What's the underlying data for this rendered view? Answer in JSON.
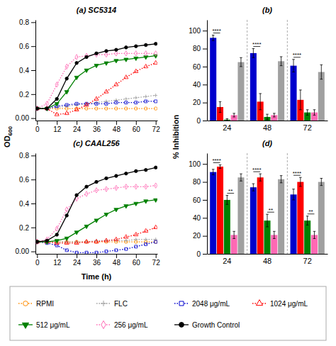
{
  "chart_data": [
    {
      "type": "line",
      "title": "(a) SC5314",
      "ylabel": "OD600",
      "legend": "bottom",
      "x": [
        0,
        6,
        12,
        18,
        24,
        30,
        36,
        42,
        48,
        54,
        60,
        66,
        72
      ],
      "xlim": [
        -1,
        73
      ],
      "xticks": [
        0,
        12,
        24,
        36,
        48,
        60,
        72
      ],
      "ylim": [
        -0.02,
        0.82
      ],
      "yticks": [
        {
          "value": 0,
          "label": "0.00"
        },
        0.2,
        0.4,
        0.6,
        0.8
      ],
      "series": [
        {
          "name": "RPMI",
          "color": "#FF8C00",
          "marker": "circle",
          "line_style": "dotted",
          "values": [
            0.08,
            0.08,
            0.08,
            0.08,
            0.08,
            0.08,
            0.08,
            0.08,
            0.08,
            0.08,
            0.08,
            0.08,
            0.08
          ]
        },
        {
          "name": "FLC",
          "color": "#A0A0A0",
          "marker": "plus",
          "line_style": "dotted",
          "values": [
            0.08,
            0.08,
            0.09,
            0.1,
            0.11,
            0.12,
            0.13,
            0.14,
            0.15,
            0.16,
            0.17,
            0.18,
            0.19
          ]
        },
        {
          "name": "2048 μg/mL",
          "color": "#0000CD",
          "marker": "square",
          "line_style": "dotted",
          "values": [
            0.08,
            0.08,
            0.1,
            0.11,
            0.12,
            0.12,
            0.12,
            0.12,
            0.13,
            0.13,
            0.13,
            0.14,
            0.14
          ]
        },
        {
          "name": "1024 μg/mL",
          "color": "#FF0000",
          "marker": "triangle-up",
          "line_style": "dotted",
          "values": [
            0.08,
            0.08,
            0.03,
            0.04,
            0.07,
            0.11,
            0.16,
            0.22,
            0.28,
            0.34,
            0.39,
            0.43,
            0.46
          ]
        },
        {
          "name": "512 μg/mL",
          "color": "#008000",
          "marker": "triangle-down",
          "line_style": "solid",
          "values": [
            0.08,
            0.08,
            0.12,
            0.22,
            0.34,
            0.4,
            0.44,
            0.46,
            0.48,
            0.49,
            0.5,
            0.51,
            0.52
          ]
        },
        {
          "name": "256 μg/mL",
          "color": "#FF69B4",
          "marker": "diamond",
          "line_style": "dotted",
          "values": [
            0.08,
            0.12,
            0.28,
            0.43,
            0.51,
            0.52,
            0.53,
            0.53,
            0.54,
            0.54,
            0.54,
            0.54,
            0.54
          ]
        },
        {
          "name": "Growth Control",
          "color": "#000000",
          "marker": "circle",
          "line_style": "solid",
          "values": [
            0.08,
            0.08,
            0.16,
            0.33,
            0.46,
            0.51,
            0.54,
            0.56,
            0.57,
            0.59,
            0.6,
            0.61,
            0.62
          ]
        }
      ]
    },
    {
      "type": "bar",
      "title": "(b)",
      "ylabel": "% Inhibition",
      "categories": [
        "24",
        "48",
        "72"
      ],
      "ylim": [
        0,
        112
      ],
      "yticks": [
        0,
        20,
        40,
        60,
        80,
        100
      ],
      "series": [
        {
          "color": "#0000CD",
          "values": [
            92,
            75,
            61
          ],
          "errors": [
            3,
            5,
            7
          ]
        },
        {
          "color": "#FF0000",
          "values": [
            15,
            21,
            23
          ],
          "errors": [
            6,
            9,
            11
          ]
        },
        {
          "color": "#008000",
          "values": [
            1,
            4,
            9
          ],
          "errors": [
            1,
            3,
            3
          ]
        },
        {
          "color": "#FF69B4",
          "values": [
            6,
            6,
            9
          ],
          "errors": [
            2,
            2,
            3
          ]
        },
        {
          "color": "#A0A0A0",
          "values": [
            65,
            66,
            54
          ],
          "errors": [
            5,
            5,
            8
          ]
        }
      ],
      "annotations": [
        {
          "text": "****",
          "x": "24",
          "series": [
            0,
            1
          ]
        },
        {
          "text": "****",
          "x": "48",
          "series": [
            0,
            1
          ]
        },
        {
          "text": "****",
          "x": "72",
          "series": [
            0,
            1
          ]
        }
      ]
    },
    {
      "type": "line",
      "title": "(c) CAAL256",
      "xlabel": "Time (h)",
      "x": [
        0,
        6,
        12,
        18,
        24,
        30,
        36,
        42,
        48,
        54,
        60,
        66,
        72
      ],
      "xlim": [
        -1,
        73
      ],
      "xticks": [
        0,
        12,
        24,
        36,
        48,
        60,
        72
      ],
      "ylim": [
        -0.02,
        0.82
      ],
      "yticks": [
        {
          "value": 0,
          "label": "0.00"
        },
        0.2,
        0.4,
        0.6,
        0.8
      ],
      "series": [
        {
          "color": "#FF8C00",
          "marker": "circle",
          "line_style": "dotted",
          "values": [
            0.08,
            0.08,
            0.08,
            0.08,
            0.08,
            0.08,
            0.08,
            0.08,
            0.08,
            0.08,
            0.08,
            0.08,
            0.08
          ]
        },
        {
          "color": "#A0A0A0",
          "marker": "plus",
          "line_style": "dotted",
          "values": [
            0.08,
            0.08,
            0.08,
            0.08,
            0.08,
            0.08,
            0.09,
            0.09,
            0.09,
            0.09,
            0.1,
            0.1,
            0.1
          ]
        },
        {
          "color": "#0000CD",
          "marker": "square",
          "line_style": "dotted",
          "values": [
            0.08,
            0.07,
            0.05,
            0.01,
            -0.01,
            -0.01,
            -0.01,
            0.0,
            0.01,
            0.02,
            0.04,
            0.06,
            0.08
          ]
        },
        {
          "color": "#FF0000",
          "marker": "triangle-up",
          "line_style": "dotted",
          "values": [
            0.08,
            0.08,
            0.07,
            0.07,
            0.07,
            0.08,
            0.08,
            0.09,
            0.1,
            0.12,
            0.14,
            0.17,
            0.2
          ]
        },
        {
          "color": "#008000",
          "marker": "triangle-down",
          "line_style": "solid",
          "values": [
            0.08,
            0.08,
            0.09,
            0.11,
            0.16,
            0.21,
            0.26,
            0.31,
            0.35,
            0.38,
            0.4,
            0.42,
            0.43
          ]
        },
        {
          "color": "#FF69B4",
          "marker": "diamond",
          "line_style": "dotted",
          "values": [
            0.08,
            0.1,
            0.19,
            0.35,
            0.44,
            0.48,
            0.51,
            0.52,
            0.53,
            0.54,
            0.54,
            0.54,
            0.55
          ]
        },
        {
          "color": "#000000",
          "marker": "circle",
          "line_style": "solid",
          "values": [
            0.08,
            0.09,
            0.14,
            0.3,
            0.47,
            0.54,
            0.58,
            0.61,
            0.63,
            0.65,
            0.67,
            0.68,
            0.7
          ]
        }
      ]
    },
    {
      "type": "bar",
      "title": "(d)",
      "categories": [
        "24",
        "48",
        "72"
      ],
      "ylim": [
        0,
        112
      ],
      "yticks": [
        0,
        20,
        40,
        60,
        80,
        100
      ],
      "series": [
        {
          "color": "#0000CD",
          "values": [
            91,
            74,
            66
          ],
          "errors": [
            3,
            4,
            6
          ]
        },
        {
          "color": "#FF0000",
          "values": [
            97,
            85,
            80
          ],
          "errors": [
            2,
            4,
            5
          ]
        },
        {
          "color": "#008000",
          "values": [
            60,
            37,
            37
          ],
          "errors": [
            5,
            7,
            5
          ]
        },
        {
          "color": "#FF69B4",
          "values": [
            21,
            21,
            21
          ],
          "errors": [
            4,
            4,
            4
          ]
        },
        {
          "color": "#A0A0A0",
          "values": [
            85,
            83,
            80
          ],
          "errors": [
            4,
            4,
            4
          ]
        }
      ],
      "annotations": [
        {
          "text": "****",
          "x": "24",
          "series": [
            0,
            1
          ]
        },
        {
          "text": "****",
          "x": "48",
          "series": [
            0,
            1
          ]
        },
        {
          "text": "****",
          "x": "72",
          "series": [
            0,
            1
          ]
        },
        {
          "text": "**",
          "x": "24",
          "series": [
            2,
            3
          ]
        },
        {
          "text": "**",
          "x": "48",
          "series": [
            2,
            3
          ]
        },
        {
          "text": "**",
          "x": "72",
          "series": [
            2,
            3
          ]
        }
      ]
    }
  ]
}
